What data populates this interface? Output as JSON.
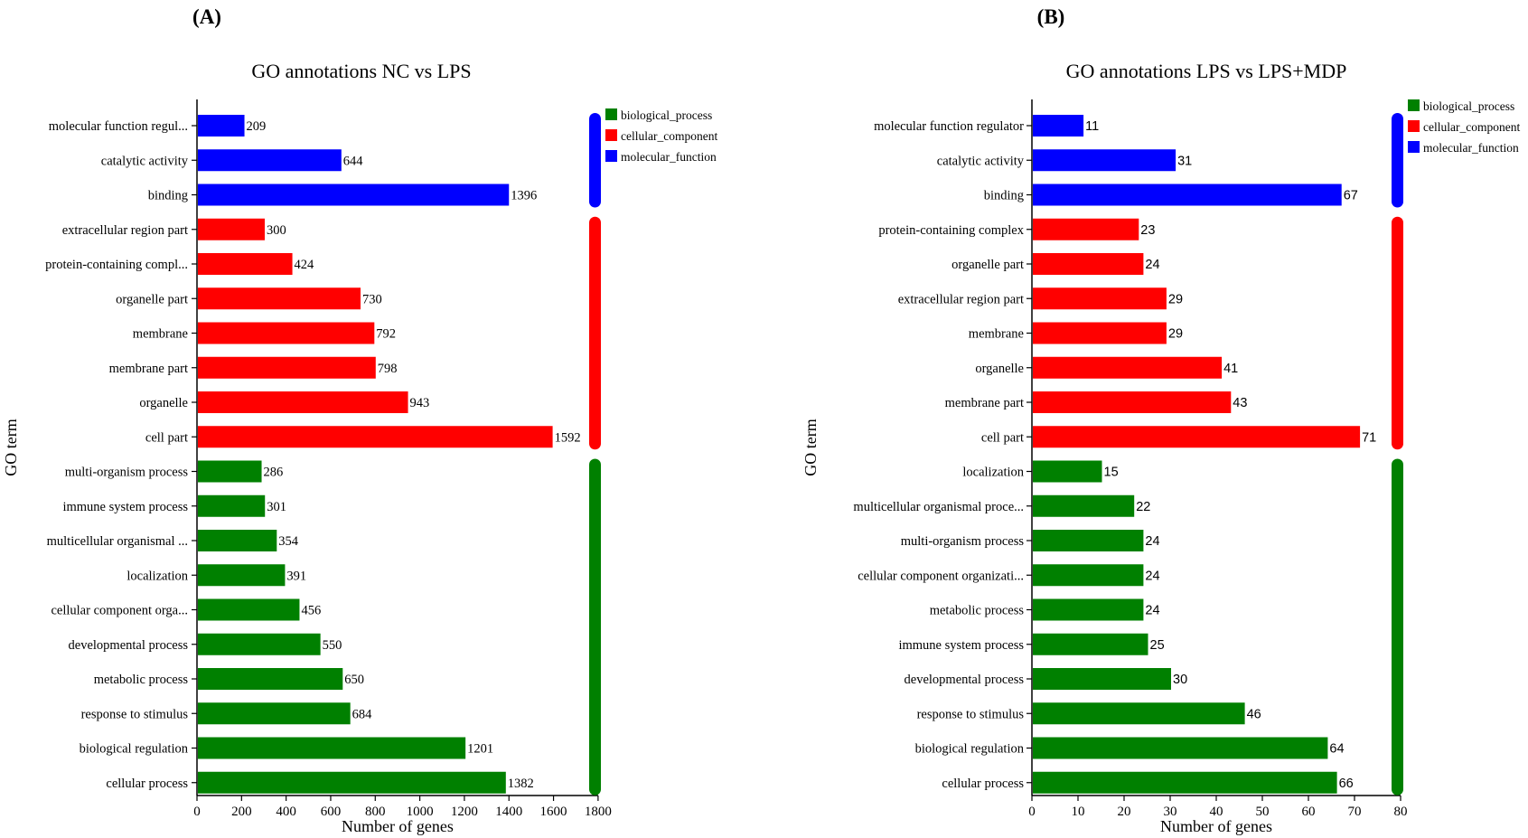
{
  "chart_data": [
    {
      "type": "bar",
      "orientation": "horizontal",
      "panel_label": "(A)",
      "title": "GO annotations NC vs LPS",
      "xlabel": "Number of genes",
      "ylabel": "GO term",
      "xlim": [
        0,
        1800
      ],
      "xticks": [
        0,
        200,
        400,
        600,
        800,
        1000,
        1200,
        1400,
        1600,
        1800
      ],
      "legend_position": "top-right",
      "legend": [
        {
          "name": "biological_process",
          "color": "#008000"
        },
        {
          "name": "cellular_component",
          "color": "#ff0000"
        },
        {
          "name": "molecular_function",
          "color": "#0000ff"
        }
      ],
      "categories": [
        {
          "label": "molecular function regul...",
          "value": 209,
          "group": "molecular_function"
        },
        {
          "label": "catalytic activity",
          "value": 644,
          "group": "molecular_function"
        },
        {
          "label": "binding",
          "value": 1396,
          "group": "molecular_function"
        },
        {
          "label": "extracellular region part",
          "value": 300,
          "group": "cellular_component"
        },
        {
          "label": "protein-containing compl...",
          "value": 424,
          "group": "cellular_component"
        },
        {
          "label": "organelle part",
          "value": 730,
          "group": "cellular_component"
        },
        {
          "label": "membrane",
          "value": 792,
          "group": "cellular_component"
        },
        {
          "label": "membrane part",
          "value": 798,
          "group": "cellular_component"
        },
        {
          "label": "organelle",
          "value": 943,
          "group": "cellular_component"
        },
        {
          "label": "cell part",
          "value": 1592,
          "group": "cellular_component"
        },
        {
          "label": "multi-organism process",
          "value": 286,
          "group": "biological_process"
        },
        {
          "label": "immune system process",
          "value": 301,
          "group": "biological_process"
        },
        {
          "label": "multicellular organismal ...",
          "value": 354,
          "group": "biological_process"
        },
        {
          "label": "localization",
          "value": 391,
          "group": "biological_process"
        },
        {
          "label": "cellular component orga...",
          "value": 456,
          "group": "biological_process"
        },
        {
          "label": "developmental process",
          "value": 550,
          "group": "biological_process"
        },
        {
          "label": "metabolic process",
          "value": 650,
          "group": "biological_process"
        },
        {
          "label": "response to stimulus",
          "value": 684,
          "group": "biological_process"
        },
        {
          "label": "biological regulation",
          "value": 1201,
          "group": "biological_process"
        },
        {
          "label": "cellular process",
          "value": 1382,
          "group": "biological_process"
        }
      ]
    },
    {
      "type": "bar",
      "orientation": "horizontal",
      "panel_label": "(B)",
      "title": "GO annotations LPS vs LPS+MDP",
      "xlabel": "Number of genes",
      "ylabel": "GO term",
      "xlim": [
        0,
        80
      ],
      "xticks": [
        0,
        10,
        20,
        30,
        40,
        50,
        60,
        70,
        80
      ],
      "legend_position": "top-right",
      "legend": [
        {
          "name": "biological_process",
          "color": "#008000"
        },
        {
          "name": "cellular_component",
          "color": "#ff0000"
        },
        {
          "name": "molecular_function",
          "color": "#0000ff"
        }
      ],
      "categories": [
        {
          "label": "molecular function regulator",
          "value": 11,
          "group": "molecular_function"
        },
        {
          "label": "catalytic activity",
          "value": 31,
          "group": "molecular_function"
        },
        {
          "label": "binding",
          "value": 67,
          "group": "molecular_function"
        },
        {
          "label": "protein-containing complex",
          "value": 23,
          "group": "cellular_component"
        },
        {
          "label": "organelle part",
          "value": 24,
          "group": "cellular_component"
        },
        {
          "label": "extracellular region part",
          "value": 29,
          "group": "cellular_component"
        },
        {
          "label": "membrane",
          "value": 29,
          "group": "cellular_component"
        },
        {
          "label": "organelle",
          "value": 41,
          "group": "cellular_component"
        },
        {
          "label": "membrane part",
          "value": 43,
          "group": "cellular_component"
        },
        {
          "label": "cell part",
          "value": 71,
          "group": "cellular_component"
        },
        {
          "label": "localization",
          "value": 15,
          "group": "biological_process"
        },
        {
          "label": "multicellular organismal proce...",
          "value": 22,
          "group": "biological_process"
        },
        {
          "label": "multi-organism process",
          "value": 24,
          "group": "biological_process"
        },
        {
          "label": "cellular component organizati...",
          "value": 24,
          "group": "biological_process"
        },
        {
          "label": "metabolic process",
          "value": 24,
          "group": "biological_process"
        },
        {
          "label": "immune system process",
          "value": 25,
          "group": "biological_process"
        },
        {
          "label": "developmental process",
          "value": 30,
          "group": "biological_process"
        },
        {
          "label": "response to stimulus",
          "value": 46,
          "group": "biological_process"
        },
        {
          "label": "biological regulation",
          "value": 64,
          "group": "biological_process"
        },
        {
          "label": "cellular process",
          "value": 66,
          "group": "biological_process"
        }
      ]
    }
  ]
}
